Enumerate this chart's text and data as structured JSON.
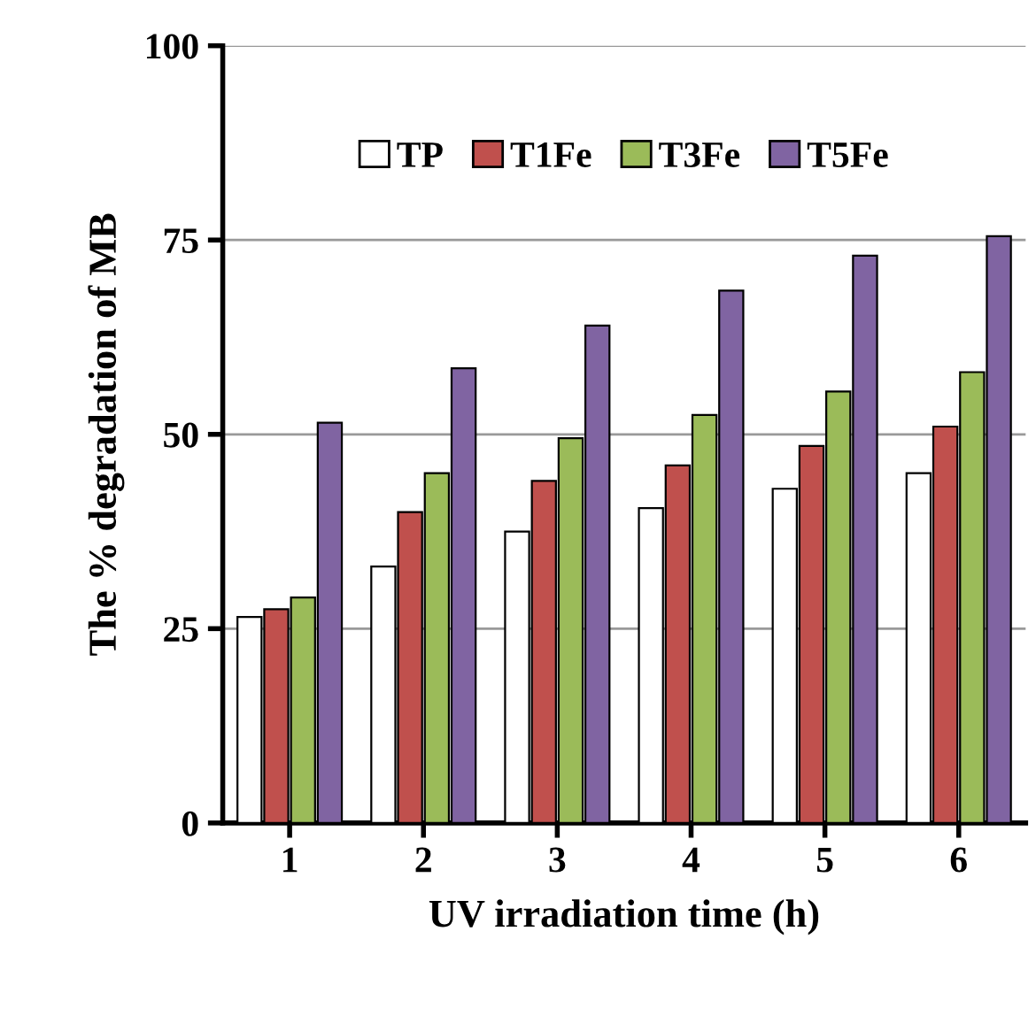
{
  "chart_data": {
    "type": "bar",
    "xlabel": "UV irradiation time (h)",
    "ylabel": "The % degradation of MB",
    "categories": [
      "1",
      "2",
      "3",
      "4",
      "5",
      "6"
    ],
    "series": [
      {
        "name": "TP",
        "color": "#ffffff",
        "values": [
          26.5,
          33,
          37.5,
          40.5,
          43,
          45
        ]
      },
      {
        "name": "T1Fe",
        "color": "#c0504d",
        "values": [
          27.5,
          40,
          44,
          46,
          48.5,
          51
        ]
      },
      {
        "name": "T3Fe",
        "color": "#9bbb59",
        "values": [
          29,
          45,
          49.5,
          52.5,
          55.5,
          58
        ]
      },
      {
        "name": "T5Fe",
        "color": "#8064a2",
        "values": [
          51.5,
          58.5,
          64,
          68.5,
          73,
          75.5
        ]
      }
    ],
    "ylim": [
      0,
      100
    ],
    "yticks": [
      0,
      25,
      50,
      75,
      100
    ],
    "grid": "y",
    "legend": "top"
  }
}
